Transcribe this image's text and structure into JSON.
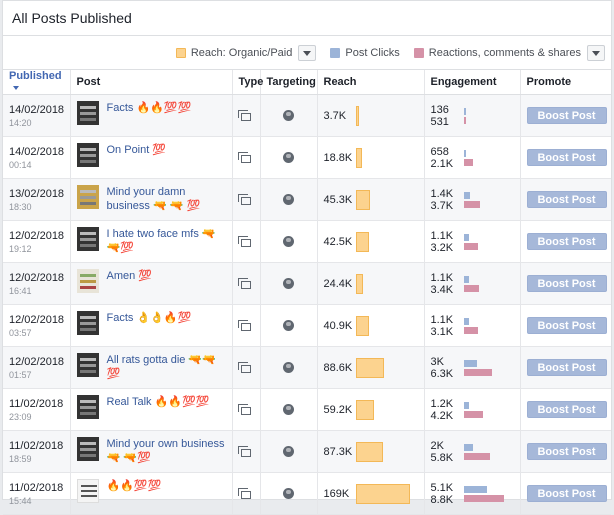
{
  "page": {
    "title": "All Posts Published"
  },
  "legend": {
    "items": [
      {
        "label": "Reach: Organic/Paid",
        "color": "#fcd38f"
      },
      {
        "label": "Post Clicks",
        "color": "#9cb4d8"
      },
      {
        "label": "Reactions, comments & shares",
        "color": "#d592a7"
      }
    ]
  },
  "columns": {
    "published": "Published",
    "post": "Post",
    "type": "Type",
    "targeting": "Targeting",
    "reach": "Reach",
    "engagement": "Engagement",
    "promote": "Promote"
  },
  "boost_label": "Boost Post",
  "max_reach": 169,
  "max_engagement": 8.8,
  "rows": [
    {
      "date": "14/02/2018",
      "time": "14:20",
      "post": "Facts 🔥🔥💯💯",
      "thumb": "dark",
      "reach": "3.7K",
      "reach_k": 3.7,
      "clicks": "136",
      "clicks_k": 0.136,
      "reactions": "531",
      "reactions_k": 0.531
    },
    {
      "date": "14/02/2018",
      "time": "00:14",
      "post": "On Point 💯",
      "thumb": "dark",
      "reach": "18.8K",
      "reach_k": 18.8,
      "clicks": "658",
      "clicks_k": 0.658,
      "reactions": "2.1K",
      "reactions_k": 2.1
    },
    {
      "date": "13/02/2018",
      "time": "18:30",
      "post": "Mind your damn business 🔫 🔫 💯",
      "thumb": "gold",
      "reach": "45.3K",
      "reach_k": 45.3,
      "clicks": "1.4K",
      "clicks_k": 1.4,
      "reactions": "3.7K",
      "reactions_k": 3.7
    },
    {
      "date": "12/02/2018",
      "time": "19:12",
      "post": "I hate two face mfs 🔫🔫💯",
      "thumb": "dark",
      "reach": "42.5K",
      "reach_k": 42.5,
      "clicks": "1.1K",
      "clicks_k": 1.1,
      "reactions": "3.2K",
      "reactions_k": 3.2
    },
    {
      "date": "12/02/2018",
      "time": "16:41",
      "post": "Amen 💯",
      "thumb": "light",
      "reach": "24.4K",
      "reach_k": 24.4,
      "clicks": "1.1K",
      "clicks_k": 1.1,
      "reactions": "3.4K",
      "reactions_k": 3.4
    },
    {
      "date": "12/02/2018",
      "time": "03:57",
      "post": "Facts 👌👌🔥💯",
      "thumb": "dark",
      "reach": "40.9K",
      "reach_k": 40.9,
      "clicks": "1.1K",
      "clicks_k": 1.1,
      "reactions": "3.1K",
      "reactions_k": 3.1
    },
    {
      "date": "12/02/2018",
      "time": "01:57",
      "post": "All rats gotta die 🔫🔫💯",
      "thumb": "dark",
      "reach": "88.6K",
      "reach_k": 88.6,
      "clicks": "3K",
      "clicks_k": 3.0,
      "reactions": "6.3K",
      "reactions_k": 6.3
    },
    {
      "date": "11/02/2018",
      "time": "23:09",
      "post": "Real Talk 🔥🔥💯💯",
      "thumb": "dark",
      "reach": "59.2K",
      "reach_k": 59.2,
      "clicks": "1.2K",
      "clicks_k": 1.2,
      "reactions": "4.2K",
      "reactions_k": 4.2
    },
    {
      "date": "11/02/2018",
      "time": "18:59",
      "post": "Mind your own business 🔫 🔫💯",
      "thumb": "dark",
      "reach": "87.3K",
      "reach_k": 87.3,
      "clicks": "2K",
      "clicks_k": 2.0,
      "reactions": "5.8K",
      "reactions_k": 5.8
    },
    {
      "date": "11/02/2018",
      "time": "15:44",
      "post": "🔥🔥💯💯",
      "thumb": "white",
      "reach": "169K",
      "reach_k": 169,
      "clicks": "5.1K",
      "clicks_k": 5.1,
      "reactions": "8.8K",
      "reactions_k": 8.8
    }
  ]
}
